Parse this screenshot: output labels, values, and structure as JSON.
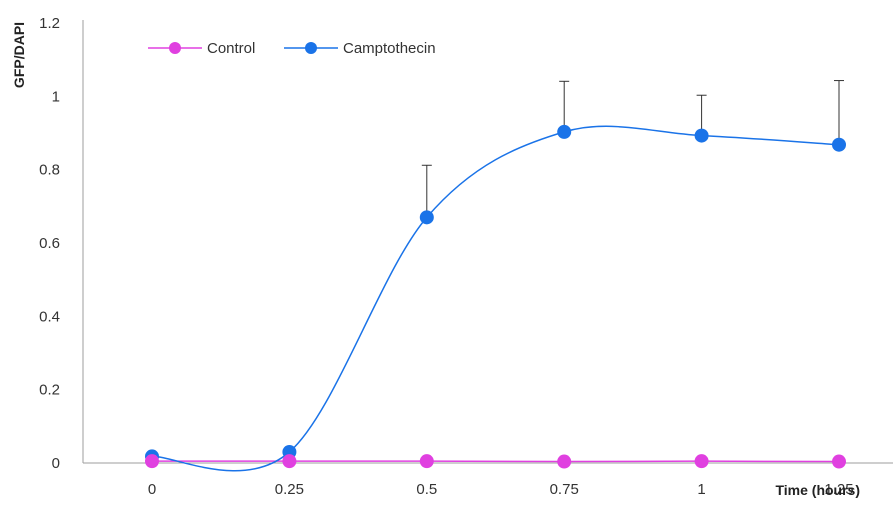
{
  "chart_data": {
    "type": "line",
    "x_categories": [
      "0",
      "0.25",
      "0.5",
      "0.75",
      "1",
      "1.25"
    ],
    "xlabel": "Time (hours)",
    "ylabel": "GFP/DAPI",
    "ylim": [
      0,
      1.2
    ],
    "y_ticks": [
      "0",
      "0.2",
      "0.4",
      "0.6",
      "0.8",
      "1",
      "1.2"
    ],
    "grid": false,
    "legend_position": "top-left",
    "series": [
      {
        "name": "Control",
        "color": "#e040e0",
        "values": [
          0.005,
          0.005,
          0.005,
          0.004,
          0.005,
          0.004
        ],
        "error_upper": null,
        "smooth": false
      },
      {
        "name": "Camptothecin",
        "color": "#1a73e8",
        "values": [
          0.018,
          0.03,
          0.67,
          0.903,
          0.893,
          0.868
        ],
        "error_upper": [
          0,
          0,
          0.142,
          0.138,
          0.11,
          0.175
        ],
        "smooth": true
      }
    ]
  }
}
